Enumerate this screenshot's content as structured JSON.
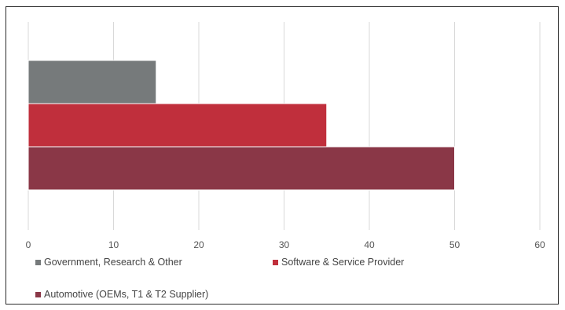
{
  "chart_data": {
    "type": "bar",
    "orientation": "horizontal",
    "title": "",
    "xlabel": "",
    "ylabel": "",
    "xlim": [
      0,
      60
    ],
    "x_ticks": [
      0,
      10,
      20,
      30,
      40,
      50,
      60
    ],
    "grid": true,
    "legend_position": "bottom",
    "series": [
      {
        "name": "Government, Research & Other",
        "value": 15,
        "color": "#767a7b"
      },
      {
        "name": "Software & Service Provider",
        "value": 35,
        "color": "#c02f3c"
      },
      {
        "name": "Automotive (OEMs, T1 & T2 Supplier)",
        "value": 50,
        "color": "#8a3747"
      }
    ]
  }
}
